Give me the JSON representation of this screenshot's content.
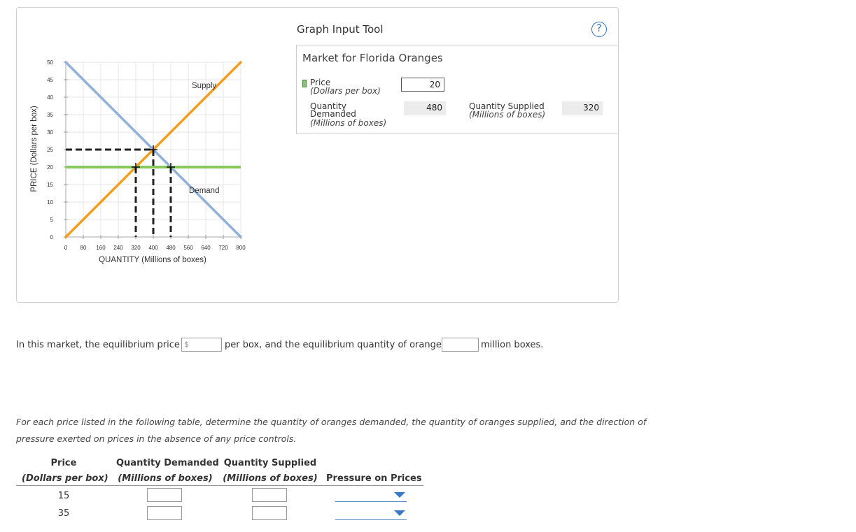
{
  "graph_panel": {
    "chart_data": {
      "type": "line",
      "xlabel": "QUANTITY (Millions of boxes)",
      "ylabel": "PRICE (Dollars per box)",
      "xlim": [
        0,
        800
      ],
      "ylim": [
        0,
        50
      ],
      "x_ticks": [
        0,
        80,
        160,
        240,
        320,
        400,
        480,
        560,
        640,
        720,
        800
      ],
      "y_ticks": [
        0,
        5,
        10,
        15,
        20,
        25,
        30,
        35,
        40,
        45,
        50
      ],
      "series": [
        {
          "name": "Supply",
          "x": [
            0,
            800
          ],
          "y": [
            0,
            50
          ],
          "color": "#f29d1f"
        },
        {
          "name": "Demand",
          "x": [
            0,
            800
          ],
          "y": [
            50,
            0
          ],
          "color": "#8fb1db"
        }
      ],
      "price_line": {
        "y": 20,
        "color": "#88c95c"
      },
      "equilibrium": {
        "x": 400,
        "y": 25
      },
      "markers": [
        {
          "x": 400,
          "y": 25
        },
        {
          "x": 320,
          "y": 20
        },
        {
          "x": 480,
          "y": 20
        }
      ]
    },
    "tool": {
      "title": "Graph Input Tool",
      "help_label": "?",
      "market_title": "Market for Florida Oranges",
      "price_label": "Price",
      "price_unit": "(Dollars per box)",
      "price_value": "20",
      "qd_label_1": "Quantity",
      "qd_label_2": "Demanded",
      "qd_unit": "(Millions of boxes)",
      "qd_value": "480",
      "qs_label": "Quantity Supplied",
      "qs_unit": "(Millions of boxes)",
      "qs_value": "320"
    }
  },
  "question": {
    "part1": "In this market, the equilibrium price is",
    "dollar_sign": "$",
    "part2": "per box, and the equilibrium quantity of oranges is",
    "part3": "million boxes."
  },
  "instructions": {
    "line1": "For each price listed in the following table, determine the quantity of oranges demanded, the quantity of oranges supplied, and the direction of",
    "line2": "pressure exerted on prices in the absence of any price controls."
  },
  "table": {
    "h_price": "Price",
    "h_price_unit": "(Dollars per box)",
    "h_qd": "Quantity Demanded",
    "h_qd_unit": "(Millions of boxes)",
    "h_qs": "Quantity Supplied",
    "h_qs_unit": "(Millions of boxes)",
    "h_pressure": "Pressure on Prices",
    "rows": [
      {
        "price": "15"
      },
      {
        "price": "35"
      }
    ]
  }
}
